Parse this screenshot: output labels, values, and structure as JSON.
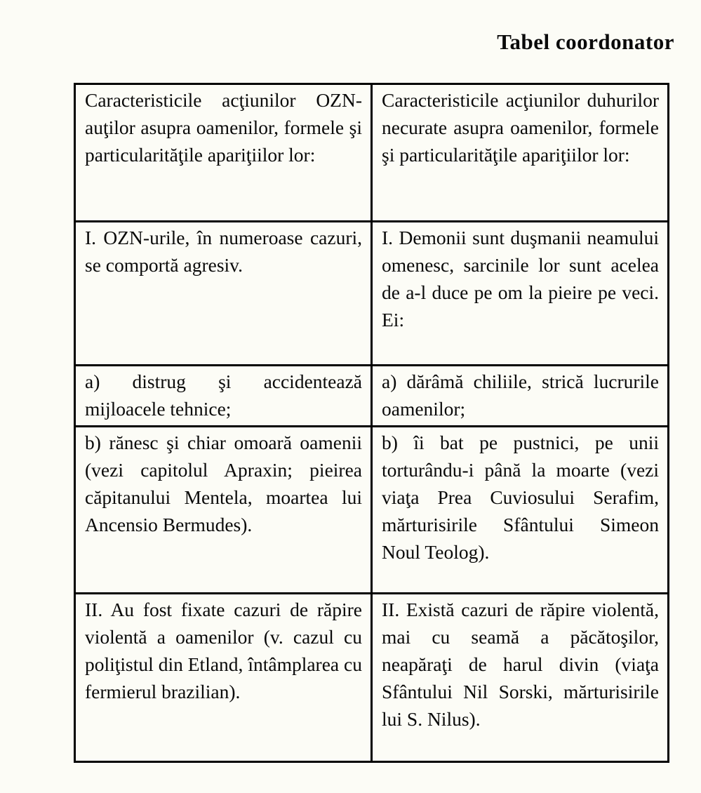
{
  "page": {
    "title": "Tabel coordonator",
    "background_color": "#fcfcf6",
    "text_color": "#0a0a0a",
    "border_color": "#000000"
  },
  "table": {
    "rows": [
      {
        "left": "Caracteristicile acţiunilor OZN-auţilor asupra oamenilor, formele şi particularităţile apariţiilor lor:",
        "right": "Caracteristicile acţiunilor duhurilor necurate asupra oamenilor, formele şi particularităţile apariţiilor lor:"
      },
      {
        "left": "I. OZN-urile, în numeroase cazuri, se comportă agresiv.",
        "right": "I. Demonii sunt duşmanii neamului omenesc, sarcinile lor sunt acelea de a-l duce pe om la pieire pe veci. Ei:"
      },
      {
        "left": "a) distrug şi accidentează mijloacele tehnice;",
        "right": "a) dărâmă chiliile, strică lucrurile oamenilor;"
      },
      {
        "left": "b) rănesc şi chiar omoară oamenii (vezi capitolul Apraxin; pieirea căpitanului Mentela, moartea lui Ancensio Bermudes).",
        "right": "b) îi bat pe pustnici, pe unii torturându-i până la moarte (vezi viaţa Prea Cuviosului Serafim, mărturisirile Sfântului Simeon Noul Teolog)."
      },
      {
        "left": "II. Au fost fixate cazuri de răpire violentă a oamenilor (v. cazul cu poliţistul din Etland, întâmplarea cu fermierul brazilian).",
        "right": "II. Există cazuri de răpire violentă, mai cu seamă a păcătoşilor, neapăraţi de harul divin (viaţa Sfântului Nil Sorski, mărturisirile lui S. Nilus)."
      }
    ]
  }
}
